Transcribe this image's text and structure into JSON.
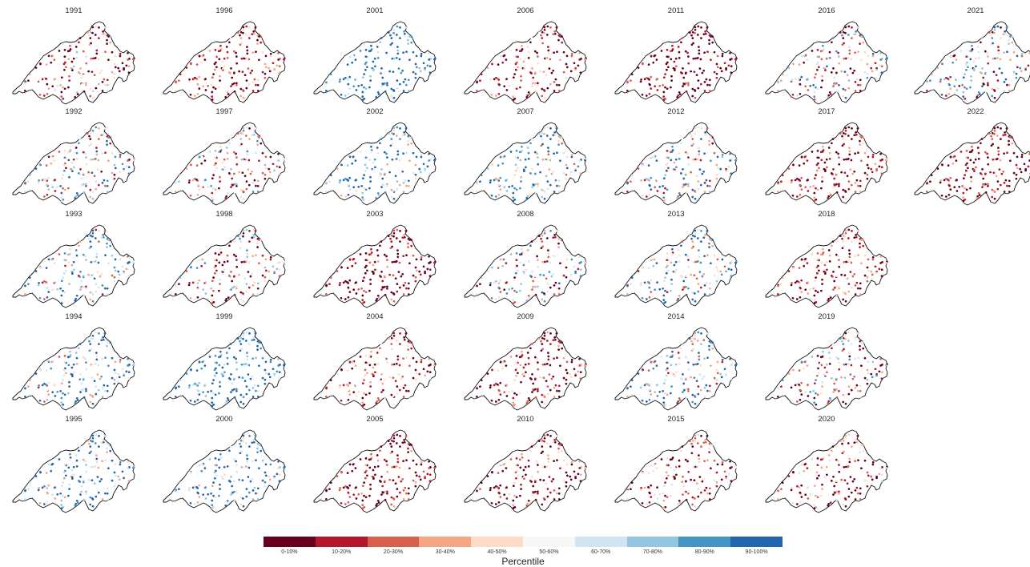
{
  "panels": [
    {
      "year": "1991",
      "bias": -0.45,
      "spread": 0.75
    },
    {
      "year": "1992",
      "bias": 0.05,
      "spread": 0.75
    },
    {
      "year": "1993",
      "bias": 0.25,
      "spread": 0.75
    },
    {
      "year": "1994",
      "bias": 0.45,
      "spread": 0.7
    },
    {
      "year": "1995",
      "bias": 0.55,
      "spread": 0.7
    },
    {
      "year": "1996",
      "bias": -0.75,
      "spread": 0.55
    },
    {
      "year": "1997",
      "bias": -0.2,
      "spread": 0.75
    },
    {
      "year": "1998",
      "bias": -0.25,
      "spread": 0.75
    },
    {
      "year": "1999",
      "bias": 0.85,
      "spread": 0.45
    },
    {
      "year": "2000",
      "bias": 0.55,
      "spread": 0.65
    },
    {
      "year": "2001",
      "bias": 0.75,
      "spread": 0.55
    },
    {
      "year": "2002",
      "bias": 0.55,
      "spread": 0.7
    },
    {
      "year": "2003",
      "bias": -0.85,
      "spread": 0.4
    },
    {
      "year": "2004",
      "bias": -0.45,
      "spread": 0.5
    },
    {
      "year": "2005",
      "bias": -0.8,
      "spread": 0.45
    },
    {
      "year": "2006",
      "bias": -0.65,
      "spread": 0.65
    },
    {
      "year": "2007",
      "bias": 0.4,
      "spread": 0.7
    },
    {
      "year": "2008",
      "bias": -0.15,
      "spread": 0.75
    },
    {
      "year": "2009",
      "bias": -0.7,
      "spread": 0.55
    },
    {
      "year": "2010",
      "bias": -0.65,
      "spread": 0.65
    },
    {
      "year": "2011",
      "bias": -0.9,
      "spread": 0.35
    },
    {
      "year": "2012",
      "bias": 0.15,
      "spread": 0.75
    },
    {
      "year": "2013",
      "bias": 0.3,
      "spread": 0.75
    },
    {
      "year": "2014",
      "bias": 0.3,
      "spread": 0.75
    },
    {
      "year": "2015",
      "bias": -0.5,
      "spread": 0.7
    },
    {
      "year": "2016",
      "bias": 0.0,
      "spread": 0.8
    },
    {
      "year": "2017",
      "bias": -0.8,
      "spread": 0.5
    },
    {
      "year": "2018",
      "bias": -0.75,
      "spread": 0.55
    },
    {
      "year": "2019",
      "bias": -0.2,
      "spread": 0.75
    },
    {
      "year": "2020",
      "bias": -0.55,
      "spread": 0.7
    },
    {
      "year": "2021",
      "bias": 0.0,
      "spread": 0.8
    },
    {
      "year": "2022",
      "bias": -0.85,
      "spread": 0.45
    }
  ],
  "legend": {
    "title": "Percentile",
    "bins": [
      {
        "label": "0-10%",
        "color": "#67001f"
      },
      {
        "label": "10-20%",
        "color": "#b2182b"
      },
      {
        "label": "20-30%",
        "color": "#d6604d"
      },
      {
        "label": "30-40%",
        "color": "#f4a582"
      },
      {
        "label": "40-50%",
        "color": "#fddbc7"
      },
      {
        "label": "50-60%",
        "color": "#f7f7f7"
      },
      {
        "label": "60-70%",
        "color": "#d1e5f0"
      },
      {
        "label": "70-80%",
        "color": "#92c5de"
      },
      {
        "label": "80-90%",
        "color": "#4393c3"
      },
      {
        "label": "90-100%",
        "color": "#2166ac"
      }
    ]
  }
}
